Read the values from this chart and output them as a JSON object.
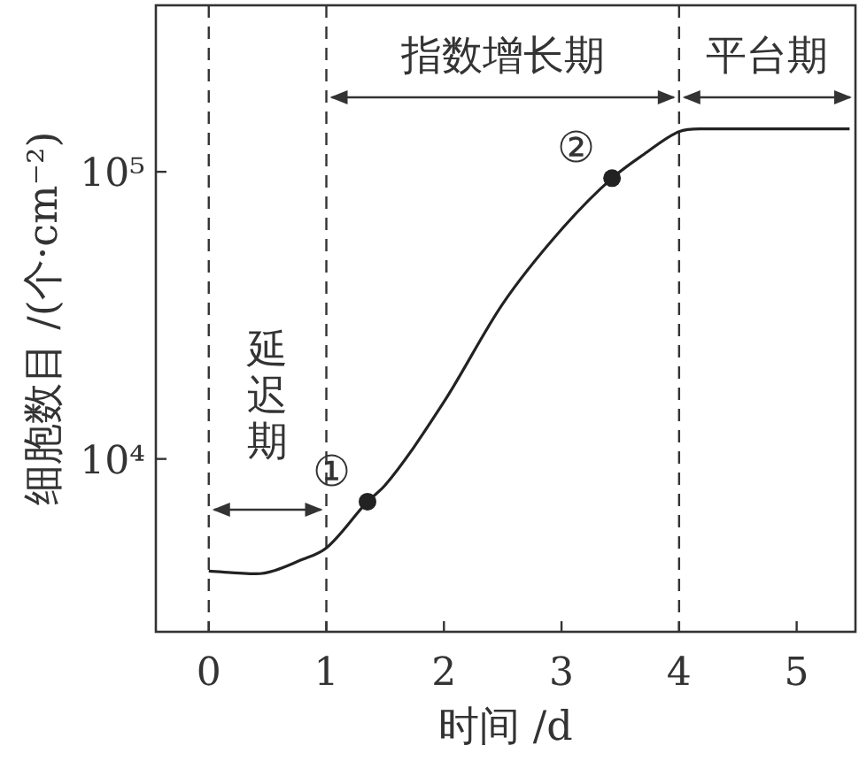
{
  "chart_data": {
    "type": "line",
    "xlabel": "时间 /d",
    "ylabel": "细胞数目 /(个·cm⁻²)",
    "log": "y",
    "xlim": [
      -0.45,
      5.5
    ],
    "xticks": [
      0,
      1,
      2,
      3,
      4,
      5
    ],
    "ylim": [
      2500,
      380000
    ],
    "yticks": [
      {
        "value": 10000,
        "label": "10⁴"
      },
      {
        "value": 100000,
        "label": "10⁵"
      }
    ],
    "series": [
      {
        "color": "#222222",
        "x": [
          0,
          0.4,
          0.8,
          1.0,
          1.35,
          1.5,
          2.0,
          2.5,
          3.0,
          3.43,
          3.7,
          4.0,
          4.18,
          5.45
        ],
        "values": [
          4070,
          3980,
          4470,
          4900,
          7100,
          8100,
          15800,
          34700,
          63000,
          95000,
          115000,
          138000,
          141000,
          141000
        ]
      },
      {
        "type": "scatter",
        "color": "#222222",
        "marker": "circle",
        "x": [
          1.35,
          3.43
        ],
        "values": [
          7100,
          95000
        ]
      }
    ],
    "annotations": [
      "延迟期",
      "指数增长期",
      "平台期",
      {
        "text": "①",
        "x": 1.35,
        "y": 7100
      },
      {
        "text": "②",
        "x": 3.43,
        "y": 95000
      }
    ],
    "ref_lines": [
      {
        "axis": "x",
        "value": 0,
        "line_style": "dashed"
      },
      {
        "axis": "x",
        "value": 1,
        "line_style": "dashed"
      },
      {
        "axis": "x",
        "value": 4,
        "line_style": "dashed"
      }
    ]
  }
}
